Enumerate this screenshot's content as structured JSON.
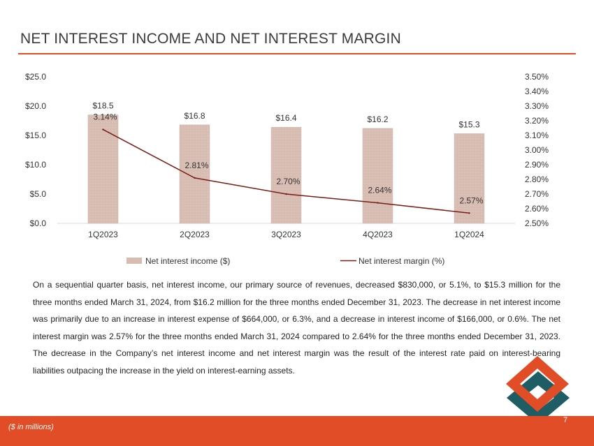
{
  "title": "NET INTEREST INCOME AND NET INTEREST MARGIN",
  "chart_data": {
    "type": "bar",
    "categories": [
      "1Q2023",
      "2Q2023",
      "3Q2023",
      "4Q2023",
      "1Q2024"
    ],
    "series": [
      {
        "name": "Net interest income ($)",
        "type": "bar",
        "axis": "left",
        "values": [
          18.5,
          16.8,
          16.4,
          16.2,
          15.3
        ],
        "labels": [
          "$18.5",
          "$16.8",
          "$16.4",
          "$16.2",
          "$15.3"
        ]
      },
      {
        "name": "Net interest margin (%)",
        "type": "line",
        "axis": "right",
        "values": [
          3.14,
          2.81,
          2.7,
          2.64,
          2.57
        ],
        "labels": [
          "3.14%",
          "2.81%",
          "2.70%",
          "2.64%",
          "2.57%"
        ]
      }
    ],
    "y_left": {
      "range": [
        0,
        25
      ],
      "ticks": [
        0,
        5,
        10,
        15,
        20,
        25
      ],
      "tick_labels": [
        "$0.0",
        "$5.0",
        "$10.0",
        "$15.0",
        "$20.0",
        "$25.0"
      ]
    },
    "y_right": {
      "range": [
        2.5,
        3.5
      ],
      "ticks": [
        2.5,
        2.6,
        2.7,
        2.8,
        2.9,
        3.0,
        3.1,
        3.2,
        3.3,
        3.4,
        3.5
      ],
      "tick_labels": [
        "2.50%",
        "2.60%",
        "2.70%",
        "2.80%",
        "2.90%",
        "3.00%",
        "3.10%",
        "3.20%",
        "3.30%",
        "3.40%",
        "3.50%"
      ]
    },
    "grid": false,
    "legend": "bottom",
    "colors": {
      "bar": "#d7bcb2",
      "line": "#7b1c16"
    }
  },
  "body_text": "On a sequential quarter basis, net interest income, our primary source of revenues, decreased $830,000, or 5.1%, to $15.3 million for the three months ended March 31, 2024, from $16.2 million for the three months ended December 31, 2023. The decrease in net interest income was primarily due to an increase in interest expense of $664,000, or 6.3%, and a decrease in interest income of $166,000, or 0.6%. The net interest margin was 2.57% for the three months ended March 31, 2024 compared to 2.64% for the three months ended December 31, 2023. The decrease in the Company’s net interest income and net interest margin was the result of the interest rate paid on interest-bearing liabilities outpacing the increase in the yield on interest-earning assets.",
  "footer": {
    "note": "($ in millions)",
    "page_number": "7"
  },
  "colors": {
    "accent": "#e14d26",
    "logo_teal": "#1d5d63"
  }
}
